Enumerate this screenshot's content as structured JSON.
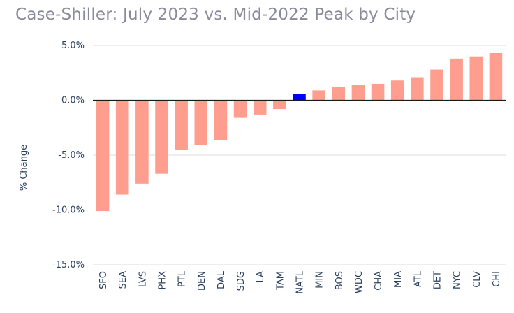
{
  "chart_data": {
    "type": "bar",
    "title": "Case-Shiller: July 2023 vs. Mid-2022 Peak by City",
    "xlabel": "",
    "ylabel": "% Change",
    "ylim": [
      -15,
      5
    ],
    "yticks": [
      {
        "value": 5,
        "label": "5.0%"
      },
      {
        "value": 0,
        "label": "0.0%"
      },
      {
        "value": -5,
        "label": "-5.0%"
      },
      {
        "value": -10,
        "label": "-10.0%"
      },
      {
        "value": -15,
        "label": "-15.0%"
      }
    ],
    "grid": true,
    "categories": [
      "SFO",
      "SEA",
      "LVS",
      "PHX",
      "PTL",
      "DEN",
      "DAL",
      "SDG",
      "LA",
      "TAM",
      "NATL",
      "MIN",
      "BOS",
      "WDC",
      "CHA",
      "MIA",
      "ATL",
      "DET",
      "NYC",
      "CLV",
      "CHI"
    ],
    "values": [
      -10.1,
      -8.6,
      -7.6,
      -6.7,
      -4.5,
      -4.1,
      -3.6,
      -1.6,
      -1.3,
      -0.8,
      0.6,
      0.9,
      1.2,
      1.4,
      1.5,
      1.8,
      2.1,
      2.8,
      3.8,
      4.0,
      4.3
    ],
    "colors": {
      "default": "#ff9e8f",
      "highlight": "#0000ff",
      "grid": "#dcdcdc",
      "zeroline": "#1a1a1a"
    },
    "highlight_category": "NATL"
  }
}
